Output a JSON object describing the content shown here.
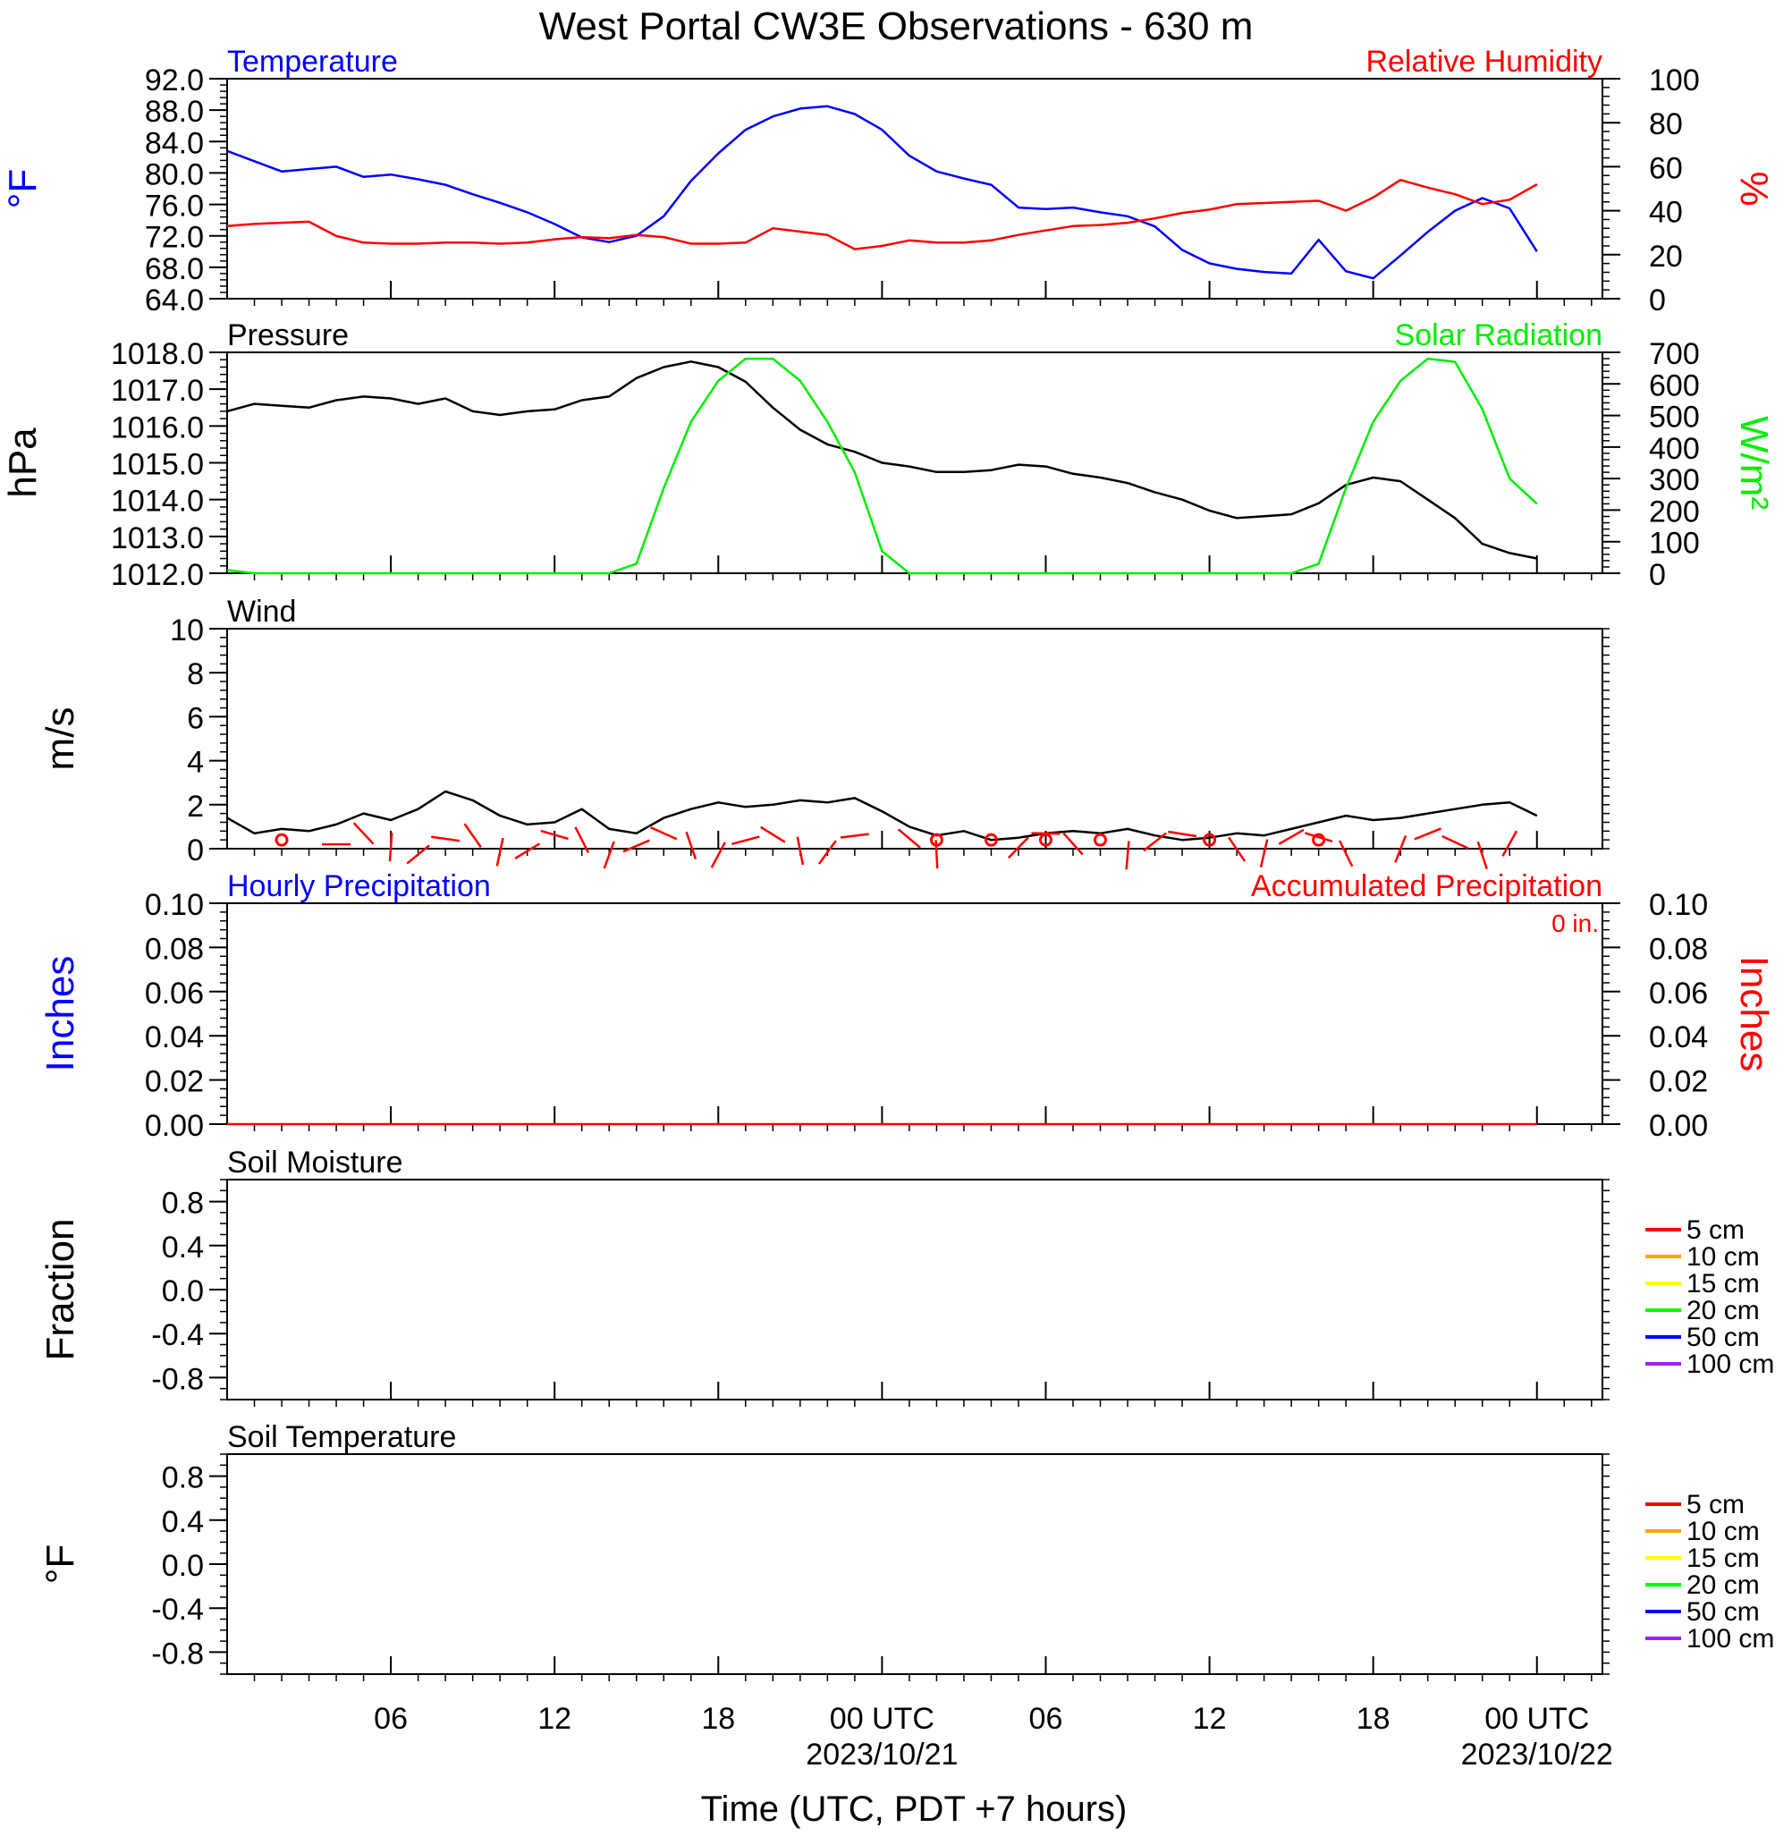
{
  "title": "West Portal CW3E Observations - 630 m",
  "xlabel": "Time (UTC, PDT +7 hours)",
  "x_ticks": [
    {
      "label": "06",
      "sub": "",
      "hour": 6
    },
    {
      "label": "12",
      "sub": "",
      "hour": 12
    },
    {
      "label": "18",
      "sub": "",
      "hour": 18
    },
    {
      "label": "00 UTC",
      "sub": "2023/10/21",
      "hour": 24
    },
    {
      "label": "06",
      "sub": "",
      "hour": 30
    },
    {
      "label": "12",
      "sub": "",
      "hour": 36
    },
    {
      "label": "18",
      "sub": "",
      "hour": 42
    },
    {
      "label": "00 UTC",
      "sub": "2023/10/22",
      "hour": 48
    }
  ],
  "colors": {
    "temperature": "#0000ff",
    "humidity": "#ff0000",
    "pressure": "#000000",
    "solar": "#00ee00",
    "wind": "#000000",
    "barbs": "#ff0000",
    "precip": "#ff0000"
  },
  "chart_data": [
    {
      "type": "line",
      "panel": "temperature",
      "left_title": "Temperature",
      "right_title": "Relative Humidity",
      "ylabel": "°F",
      "y2label": "%",
      "ylim": [
        64,
        92
      ],
      "y2lim": [
        0,
        100
      ],
      "y_ticks": [
        "92.0",
        "88.0",
        "84.0",
        "80.0",
        "76.0",
        "72.0",
        "68.0",
        "64.0"
      ],
      "y2_ticks": [
        "100",
        "80",
        "60",
        "40",
        "20",
        "0"
      ],
      "series": [
        {
          "name": "Temperature",
          "axis": "left",
          "x": [
            0,
            1,
            2,
            3,
            4,
            5,
            6,
            7,
            8,
            9,
            10,
            11,
            12,
            13,
            14,
            15,
            16,
            17,
            18,
            19,
            20,
            21,
            22,
            23,
            24,
            25,
            26,
            27,
            28,
            29,
            30,
            31,
            32,
            33,
            34,
            35,
            36,
            37,
            38,
            39,
            40,
            41,
            42,
            43,
            44,
            45,
            46,
            47,
            48
          ],
          "values": [
            82.8,
            81.5,
            80.2,
            80.5,
            80.8,
            79.5,
            79.8,
            79.2,
            78.5,
            77.3,
            76.2,
            75.0,
            73.5,
            71.8,
            71.2,
            72.0,
            74.5,
            79.0,
            82.5,
            85.5,
            87.2,
            88.2,
            88.5,
            87.5,
            85.5,
            82.2,
            80.2,
            79.3,
            78.5,
            75.6,
            75.4,
            75.6,
            75.0,
            74.5,
            73.2,
            70.2,
            68.5,
            67.8,
            67.4,
            67.2,
            71.5,
            67.5,
            66.6,
            69.5,
            72.5,
            75.2,
            76.8,
            75.5,
            70.0
          ]
        },
        {
          "name": "Relative Humidity",
          "axis": "right",
          "x": [
            0,
            1,
            2,
            3,
            4,
            5,
            6,
            7,
            8,
            9,
            10,
            11,
            12,
            13,
            14,
            15,
            16,
            17,
            18,
            19,
            20,
            21,
            22,
            23,
            24,
            25,
            26,
            27,
            28,
            29,
            30,
            31,
            32,
            33,
            34,
            35,
            36,
            37,
            38,
            39,
            40,
            41,
            42,
            43,
            44,
            45,
            46,
            47,
            48
          ],
          "values": [
            33,
            34,
            34.5,
            35,
            28.5,
            25.5,
            25,
            25,
            25.5,
            25.5,
            25,
            25.5,
            27,
            28,
            27.5,
            29,
            28,
            25,
            25,
            25.5,
            32,
            30.5,
            29,
            22.5,
            24,
            26.5,
            25.5,
            25.5,
            26.5,
            29,
            31,
            33,
            33.5,
            34.5,
            36.5,
            39,
            40.5,
            43,
            43.5,
            44,
            44.5,
            40,
            46,
            54,
            50.5,
            47.5,
            43,
            45,
            52
          ]
        }
      ]
    },
    {
      "type": "line",
      "panel": "pressure",
      "left_title": "Pressure",
      "right_title": "Solar Radiation",
      "ylabel": "hPa",
      "y2label": "W/m²",
      "ylim": [
        1012,
        1018
      ],
      "y2lim": [
        0,
        700
      ],
      "y_ticks": [
        "1018.0",
        "1017.0",
        "1016.0",
        "1015.0",
        "1014.0",
        "1013.0",
        "1012.0"
      ],
      "y2_ticks": [
        "700",
        "600",
        "500",
        "400",
        "300",
        "200",
        "100",
        "0"
      ],
      "series": [
        {
          "name": "Pressure",
          "axis": "left",
          "x": [
            0,
            1,
            2,
            3,
            4,
            5,
            6,
            7,
            8,
            9,
            10,
            11,
            12,
            13,
            14,
            15,
            16,
            17,
            18,
            19,
            20,
            21,
            22,
            23,
            24,
            25,
            26,
            27,
            28,
            29,
            30,
            31,
            32,
            33,
            34,
            35,
            36,
            37,
            38,
            39,
            40,
            41,
            42,
            43,
            44,
            45,
            46,
            47,
            48
          ],
          "values": [
            1016.4,
            1016.6,
            1016.55,
            1016.5,
            1016.7,
            1016.8,
            1016.75,
            1016.6,
            1016.75,
            1016.4,
            1016.3,
            1016.4,
            1016.45,
            1016.7,
            1016.8,
            1017.3,
            1017.6,
            1017.75,
            1017.6,
            1017.2,
            1016.5,
            1015.9,
            1015.5,
            1015.3,
            1015.0,
            1014.9,
            1014.75,
            1014.75,
            1014.8,
            1014.95,
            1014.9,
            1014.7,
            1014.6,
            1014.45,
            1014.2,
            1014.0,
            1013.7,
            1013.5,
            1013.55,
            1013.6,
            1013.9,
            1014.4,
            1014.6,
            1014.5,
            1014.0,
            1013.5,
            1012.8,
            1012.55,
            1012.4
          ]
        },
        {
          "name": "Solar Radiation",
          "axis": "right",
          "x": [
            0,
            1,
            2,
            3,
            4,
            5,
            6,
            7,
            8,
            9,
            10,
            11,
            12,
            13,
            14,
            15,
            16,
            17,
            18,
            19,
            20,
            21,
            22,
            23,
            24,
            25,
            26,
            27,
            28,
            29,
            30,
            31,
            32,
            33,
            34,
            35,
            36,
            37,
            38,
            39,
            40,
            41,
            42,
            43,
            44,
            45,
            46,
            47,
            48
          ],
          "values": [
            10,
            0,
            0,
            0,
            0,
            0,
            0,
            0,
            0,
            0,
            0,
            0,
            0,
            0,
            0,
            30,
            270,
            480,
            610,
            680,
            680,
            610,
            480,
            320,
            70,
            0,
            0,
            0,
            0,
            0,
            0,
            0,
            0,
            0,
            0,
            0,
            0,
            0,
            0,
            0,
            30,
            270,
            480,
            610,
            680,
            670,
            520,
            300,
            220
          ]
        }
      ]
    },
    {
      "type": "line",
      "panel": "wind",
      "left_title": "Wind",
      "ylabel": "m/s",
      "ylim": [
        0,
        10
      ],
      "y_ticks": [
        "10",
        "8",
        "6",
        "4",
        "2",
        "0"
      ],
      "series": [
        {
          "name": "Wind",
          "x": [
            0,
            1,
            2,
            3,
            4,
            5,
            6,
            7,
            8,
            9,
            10,
            11,
            12,
            13,
            14,
            15,
            16,
            17,
            18,
            19,
            20,
            21,
            22,
            23,
            24,
            25,
            26,
            27,
            28,
            29,
            30,
            31,
            32,
            33,
            34,
            35,
            36,
            37,
            38,
            39,
            40,
            41,
            42,
            43,
            44,
            45,
            46,
            47,
            48
          ],
          "values": [
            1.4,
            0.7,
            0.9,
            0.8,
            1.1,
            1.6,
            1.3,
            1.8,
            2.6,
            2.2,
            1.5,
            1.1,
            1.2,
            1.8,
            0.9,
            0.7,
            1.4,
            1.8,
            2.1,
            1.9,
            2.0,
            2.2,
            2.1,
            2.3,
            1.7,
            1.0,
            0.6,
            0.8,
            0.4,
            0.5,
            0.7,
            0.8,
            0.7,
            0.9,
            0.6,
            0.4,
            0.5,
            0.7,
            0.6,
            0.9,
            1.2,
            1.5,
            1.3,
            1.4,
            1.6,
            1.8,
            2.0,
            2.1,
            1.5
          ]
        }
      ],
      "barbs": {
        "x": [
          4,
          5,
          6,
          7,
          8,
          9,
          10,
          11,
          12,
          13,
          14,
          15,
          16,
          17,
          18,
          19,
          20,
          21,
          22,
          23,
          25,
          26,
          29,
          30,
          31,
          33,
          34,
          35,
          37,
          38,
          39,
          40,
          41,
          43,
          44,
          45,
          46,
          47
        ],
        "calm_x": [
          2,
          26,
          28,
          30,
          32,
          36,
          40
        ]
      }
    },
    {
      "type": "line",
      "panel": "precipitation",
      "left_title": "Hourly Precipitation",
      "right_title": "Accumulated Precipitation",
      "annotation": "0 in.",
      "ylabel": "Inches",
      "y2label": "Inches",
      "ylim": [
        0,
        0.1
      ],
      "y_ticks": [
        "0.10",
        "0.08",
        "0.06",
        "0.04",
        "0.02",
        "0.00"
      ],
      "y2_ticks": [
        "0.10",
        "0.08",
        "0.06",
        "0.04",
        "0.02",
        "0.00"
      ],
      "series": [
        {
          "name": "Accumulated Precipitation",
          "x": [
            0,
            48
          ],
          "values": [
            0,
            0
          ]
        }
      ]
    },
    {
      "type": "line",
      "panel": "soil_moisture",
      "left_title": "Soil Moisture",
      "ylabel": "Fraction",
      "ylim": [
        -1,
        1
      ],
      "y_ticks": [
        "0.8",
        "0.4",
        "0.0",
        "-0.4",
        "-0.8"
      ],
      "legend": [
        "5 cm",
        "10 cm",
        "15 cm",
        "20 cm",
        "50 cm",
        "100 cm"
      ],
      "legend_colors": [
        "#ff0000",
        "#ffa500",
        "#ffff00",
        "#00ff00",
        "#0000ff",
        "#a020f0"
      ]
    },
    {
      "type": "line",
      "panel": "soil_temperature",
      "left_title": "Soil Temperature",
      "ylabel": "°F",
      "ylim": [
        -1,
        1
      ],
      "y_ticks": [
        "0.8",
        "0.4",
        "0.0",
        "-0.4",
        "-0.8"
      ],
      "legend": [
        "5 cm",
        "10 cm",
        "15 cm",
        "20 cm",
        "50 cm",
        "100 cm"
      ],
      "legend_colors": [
        "#ff0000",
        "#ffa500",
        "#ffff00",
        "#00ff00",
        "#0000ff",
        "#a020f0"
      ]
    }
  ]
}
